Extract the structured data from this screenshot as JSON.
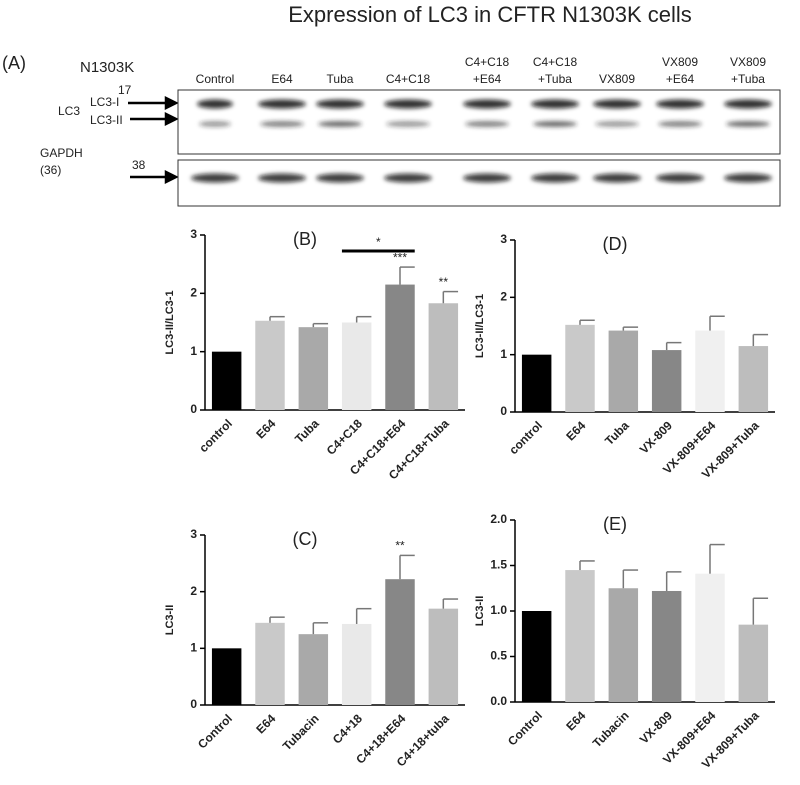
{
  "title": "Expression of LC3 in CFTR N1303K cells",
  "blot": {
    "panel": "(A)",
    "cell_line": "N1303K",
    "lanes": [
      [
        "Control"
      ],
      [
        "E64"
      ],
      [
        "Tuba"
      ],
      [
        "C4+C18"
      ],
      [
        "C4+C18",
        "+E64"
      ],
      [
        "C4+C18",
        "+Tuba"
      ],
      [
        "VX809"
      ],
      [
        "VX809",
        "+E64"
      ],
      [
        "VX809",
        "+Tuba"
      ]
    ],
    "lc3": "LC3",
    "lc3_1": "LC3-I",
    "lc3_2": "LC3-II",
    "lc3_size": "17",
    "gapdh": [
      "GAPDH",
      "(36)"
    ],
    "gapdh_size": "38"
  },
  "chart_data": [
    {
      "type": "bar",
      "panel": "(B)",
      "y_label": "LC3-II/LC3-1",
      "categories": [
        "control",
        "E64",
        "Tuba",
        "C4+C18",
        "C4+C18+E64",
        "C4+C18+Tuba"
      ],
      "values": [
        1,
        1.53,
        1.42,
        1.5,
        2.15,
        1.83
      ],
      "errors": [
        0,
        0.07,
        0.06,
        0.1,
        0.3,
        0.2
      ],
      "colors": [
        "#000000",
        "#c9c9c9",
        "#a9a9a9",
        "#e9e9e9",
        "#878787",
        "#bdbdbd"
      ],
      "significance": [
        null,
        null,
        null,
        null,
        "***",
        "**"
      ],
      "bracket": {
        "label": "*",
        "from": "C4+C18",
        "to": "C4+C18+E64"
      },
      "ylim": [
        0,
        3
      ],
      "yticks": [
        0,
        1,
        2,
        3
      ]
    },
    {
      "type": "bar",
      "panel": "(D)",
      "y_label": "LC3-II/LC3-1",
      "categories": [
        "control",
        "E64",
        "Tuba",
        "VX-809",
        "VX-809+E64",
        "VX-809+Tuba"
      ],
      "values": [
        1,
        1.52,
        1.42,
        1.08,
        1.42,
        1.15
      ],
      "errors": [
        0,
        0.08,
        0.06,
        0.13,
        0.25,
        0.2
      ],
      "colors": [
        "#000000",
        "#c9c9c9",
        "#a9a9a9",
        "#878787",
        "#f0f0f0",
        "#bdbdbd"
      ],
      "ylim": [
        0,
        3
      ],
      "yticks": [
        0,
        1,
        2,
        3
      ]
    },
    {
      "type": "bar",
      "panel": "(C)",
      "y_label": "LC3-II",
      "categories": [
        "Control",
        "E64",
        "Tubacin",
        "C4+18",
        "C4+18+E64",
        "C4+18+tuba"
      ],
      "values": [
        1,
        1.45,
        1.25,
        1.43,
        2.22,
        1.7
      ],
      "errors": [
        0,
        0.1,
        0.2,
        0.27,
        0.42,
        0.17
      ],
      "colors": [
        "#000000",
        "#c9c9c9",
        "#a9a9a9",
        "#e9e9e9",
        "#878787",
        "#bdbdbd"
      ],
      "significance": [
        null,
        null,
        null,
        null,
        "**",
        null
      ],
      "ylim": [
        0,
        3
      ],
      "yticks": [
        0,
        1,
        2,
        3
      ]
    },
    {
      "type": "bar",
      "panel": "(E)",
      "y_label": "LC3-II",
      "categories": [
        "Control",
        "E64",
        "Tubacin",
        "VX-809",
        "VX-809+E64",
        "VX-809+Tuba"
      ],
      "values": [
        1,
        1.45,
        1.25,
        1.22,
        1.41,
        0.85
      ],
      "errors": [
        0,
        0.1,
        0.2,
        0.21,
        0.32,
        0.29
      ],
      "colors": [
        "#000000",
        "#c9c9c9",
        "#a9a9a9",
        "#878787",
        "#f0f0f0",
        "#bdbdbd"
      ],
      "ylim": [
        0,
        2
      ],
      "yticks": [
        {
          "value": 0,
          "label": "0.0"
        },
        0.5,
        {
          "value": 1,
          "label": "1.0"
        },
        1.5,
        {
          "value": 2,
          "label": "2.0"
        }
      ]
    }
  ]
}
